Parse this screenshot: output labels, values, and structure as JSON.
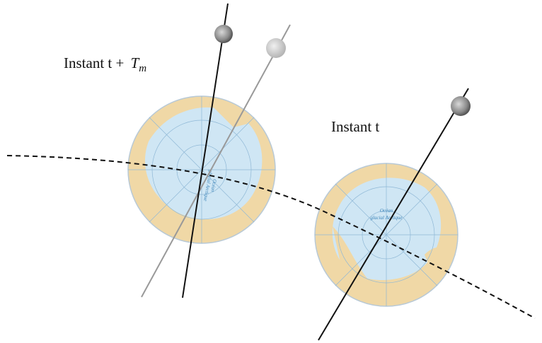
{
  "labels": [
    {
      "text": "Instant t +",
      "symbol": "T",
      "subscript": "m"
    },
    {
      "text": "Instant t"
    }
  ],
  "globes": [
    {
      "map_label": [
        "Océan",
        "glacial Arctique"
      ]
    },
    {
      "map_label": [
        "Océan",
        "glacial Arctique"
      ]
    }
  ]
}
